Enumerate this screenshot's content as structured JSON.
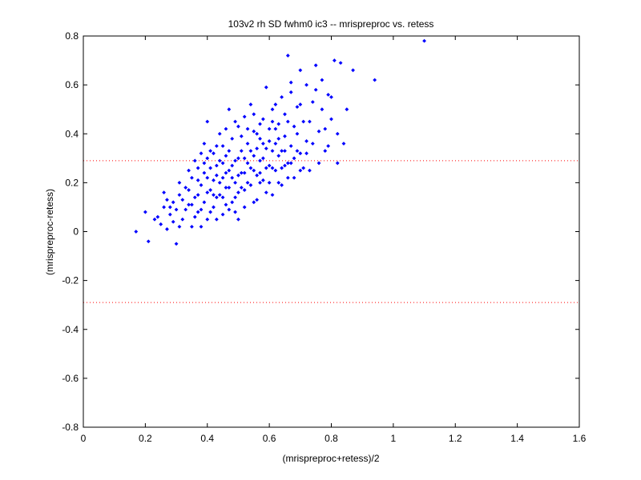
{
  "chart_data": {
    "type": "scatter",
    "title": "103v2 rh SD fwhm0 ic3 -- mrispreproc vs. retess",
    "xlabel": "(mrispreproc+retess)/2",
    "ylabel": "(mrispreproc-retess)",
    "xlim": [
      0,
      1.6
    ],
    "ylim": [
      -0.8,
      0.8
    ],
    "xticks": [
      0,
      0.2,
      0.4,
      0.6,
      0.8,
      1,
      1.2,
      1.4,
      1.6
    ],
    "xtick_labels": [
      "0",
      "0.2",
      "0.4",
      "0.6",
      "0.8",
      "1",
      "1.2",
      "1.4",
      "1.6"
    ],
    "yticks": [
      -0.8,
      -0.6,
      -0.4,
      -0.2,
      0,
      0.2,
      0.4,
      0.6,
      0.8
    ],
    "ytick_labels": [
      "-0.8",
      "-0.6",
      "-0.4",
      "-0.2",
      "0",
      "0.2",
      "0.4",
      "0.6",
      "0.8"
    ],
    "grid": false,
    "series": [
      {
        "marker": "diamond",
        "color": "#0000ff",
        "points": [
          [
            0.17,
            0.0
          ],
          [
            0.21,
            -0.04
          ],
          [
            0.2,
            0.08
          ],
          [
            0.23,
            0.05
          ],
          [
            0.25,
            0.03
          ],
          [
            0.26,
            0.1
          ],
          [
            0.27,
            0.01
          ],
          [
            0.28,
            0.07
          ],
          [
            0.29,
            0.12
          ],
          [
            0.3,
            -0.05
          ],
          [
            0.3,
            0.09
          ],
          [
            0.31,
            0.15
          ],
          [
            0.32,
            0.05
          ],
          [
            0.33,
            0.18
          ],
          [
            0.34,
            0.11
          ],
          [
            0.35,
            0.02
          ],
          [
            0.35,
            0.22
          ],
          [
            0.36,
            0.14
          ],
          [
            0.37,
            0.26
          ],
          [
            0.37,
            0.08
          ],
          [
            0.38,
            0.19
          ],
          [
            0.38,
            0.32
          ],
          [
            0.39,
            0.12
          ],
          [
            0.39,
            0.24
          ],
          [
            0.4,
            0.05
          ],
          [
            0.4,
            0.45
          ],
          [
            0.4,
            0.3
          ],
          [
            0.41,
            0.17
          ],
          [
            0.42,
            0.21
          ],
          [
            0.42,
            0.1
          ],
          [
            0.43,
            0.35
          ],
          [
            0.43,
            0.27
          ],
          [
            0.44,
            0.15
          ],
          [
            0.44,
            0.4
          ],
          [
            0.45,
            0.22
          ],
          [
            0.45,
            0.07
          ],
          [
            0.46,
            0.31
          ],
          [
            0.46,
            0.18
          ],
          [
            0.47,
            0.25
          ],
          [
            0.47,
            0.5
          ],
          [
            0.48,
            0.12
          ],
          [
            0.48,
            0.38
          ],
          [
            0.49,
            0.2
          ],
          [
            0.49,
            0.29
          ],
          [
            0.5,
            0.43
          ],
          [
            0.5,
            0.16
          ],
          [
            0.51,
            0.33
          ],
          [
            0.51,
            0.24
          ],
          [
            0.52,
            0.1
          ],
          [
            0.52,
            0.47
          ],
          [
            0.53,
            0.28
          ],
          [
            0.53,
            0.36
          ],
          [
            0.54,
            0.19
          ],
          [
            0.54,
            0.52
          ],
          [
            0.55,
            0.31
          ],
          [
            0.55,
            0.41
          ],
          [
            0.56,
            0.23
          ],
          [
            0.56,
            0.13
          ],
          [
            0.57,
            0.38
          ],
          [
            0.57,
            0.29
          ],
          [
            0.58,
            0.46
          ],
          [
            0.58,
            0.21
          ],
          [
            0.59,
            0.59
          ],
          [
            0.59,
            0.34
          ],
          [
            0.6,
            0.27
          ],
          [
            0.6,
            0.42
          ],
          [
            0.61,
            0.15
          ],
          [
            0.61,
            0.5
          ],
          [
            0.62,
            0.36
          ],
          [
            0.62,
            0.25
          ],
          [
            0.63,
            0.44
          ],
          [
            0.63,
            0.31
          ],
          [
            0.64,
            0.55
          ],
          [
            0.64,
            0.19
          ],
          [
            0.65,
            0.39
          ],
          [
            0.65,
            0.48
          ],
          [
            0.66,
            0.72
          ],
          [
            0.66,
            0.28
          ],
          [
            0.67,
            0.35
          ],
          [
            0.67,
            0.57
          ],
          [
            0.68,
            0.43
          ],
          [
            0.68,
            0.22
          ],
          [
            0.69,
            0.51
          ],
          [
            0.7,
            0.66
          ],
          [
            0.7,
            0.32
          ],
          [
            0.71,
            0.45
          ],
          [
            0.72,
            0.6
          ],
          [
            0.72,
            0.37
          ],
          [
            0.73,
            0.25
          ],
          [
            0.74,
            0.53
          ],
          [
            0.75,
            0.68
          ],
          [
            0.76,
            0.41
          ],
          [
            0.77,
            0.62
          ],
          [
            0.78,
            0.33
          ],
          [
            0.79,
            0.56
          ],
          [
            0.8,
            0.46
          ],
          [
            0.81,
            0.7
          ],
          [
            0.82,
            0.28
          ],
          [
            0.83,
            0.69
          ],
          [
            0.84,
            0.36
          ],
          [
            0.87,
            0.66
          ],
          [
            0.94,
            0.62
          ],
          [
            1.1,
            0.78
          ],
          [
            0.24,
            0.06
          ],
          [
            0.27,
            0.13
          ],
          [
            0.29,
            0.04
          ],
          [
            0.31,
            0.2
          ],
          [
            0.33,
            0.09
          ],
          [
            0.34,
            0.25
          ],
          [
            0.36,
            0.06
          ],
          [
            0.36,
            0.29
          ],
          [
            0.38,
            0.02
          ],
          [
            0.39,
            0.36
          ],
          [
            0.41,
            0.26
          ],
          [
            0.41,
            0.08
          ],
          [
            0.42,
            0.32
          ],
          [
            0.43,
            0.14
          ],
          [
            0.44,
            0.29
          ],
          [
            0.45,
            0.35
          ],
          [
            0.46,
            0.11
          ],
          [
            0.46,
            0.42
          ],
          [
            0.47,
            0.18
          ],
          [
            0.48,
            0.27
          ],
          [
            0.49,
            0.08
          ],
          [
            0.49,
            0.45
          ],
          [
            0.5,
            0.23
          ],
          [
            0.51,
            0.39
          ],
          [
            0.52,
            0.3
          ],
          [
            0.52,
            0.17
          ],
          [
            0.53,
            0.42
          ],
          [
            0.54,
            0.26
          ],
          [
            0.55,
            0.12
          ],
          [
            0.55,
            0.48
          ],
          [
            0.56,
            0.34
          ],
          [
            0.57,
            0.2
          ],
          [
            0.57,
            0.44
          ],
          [
            0.58,
            0.3
          ],
          [
            0.59,
            0.16
          ],
          [
            0.6,
            0.37
          ],
          [
            0.61,
            0.45
          ],
          [
            0.61,
            0.26
          ],
          [
            0.62,
            0.52
          ],
          [
            0.63,
            0.2
          ],
          [
            0.64,
            0.33
          ],
          [
            0.65,
            0.27
          ],
          [
            0.66,
            0.45
          ],
          [
            0.67,
            0.61
          ],
          [
            0.68,
            0.3
          ],
          [
            0.69,
            0.4
          ],
          [
            0.7,
            0.52
          ],
          [
            0.71,
            0.26
          ],
          [
            0.73,
            0.45
          ],
          [
            0.74,
            0.36
          ],
          [
            0.75,
            0.58
          ],
          [
            0.77,
            0.5
          ],
          [
            0.78,
            0.42
          ],
          [
            0.8,
            0.55
          ],
          [
            0.82,
            0.4
          ],
          [
            0.85,
            0.5
          ],
          [
            0.26,
            0.16
          ],
          [
            0.28,
            0.1
          ],
          [
            0.31,
            0.02
          ],
          [
            0.32,
            0.13
          ],
          [
            0.34,
            0.17
          ],
          [
            0.35,
            0.11
          ],
          [
            0.37,
            0.21
          ],
          [
            0.37,
            0.15
          ],
          [
            0.38,
            0.09
          ],
          [
            0.39,
            0.28
          ],
          [
            0.4,
            0.16
          ],
          [
            0.4,
            0.22
          ],
          [
            0.41,
            0.33
          ],
          [
            0.42,
            0.15
          ],
          [
            0.43,
            0.23
          ],
          [
            0.43,
            0.05
          ],
          [
            0.44,
            0.2
          ],
          [
            0.45,
            0.28
          ],
          [
            0.45,
            0.14
          ],
          [
            0.46,
            0.24
          ],
          [
            0.47,
            0.33
          ],
          [
            0.47,
            0.09
          ],
          [
            0.48,
            0.22
          ],
          [
            0.49,
            0.14
          ],
          [
            0.5,
            0.3
          ],
          [
            0.5,
            0.05
          ],
          [
            0.51,
            0.18
          ],
          [
            0.52,
            0.24
          ],
          [
            0.53,
            0.2
          ],
          [
            0.54,
            0.33
          ],
          [
            0.55,
            0.25
          ],
          [
            0.56,
            0.4
          ],
          [
            0.57,
            0.24
          ],
          [
            0.58,
            0.36
          ],
          [
            0.59,
            0.26
          ],
          [
            0.6,
            0.2
          ],
          [
            0.61,
            0.33
          ],
          [
            0.62,
            0.42
          ],
          [
            0.63,
            0.38
          ],
          [
            0.64,
            0.26
          ],
          [
            0.65,
            0.33
          ],
          [
            0.66,
            0.22
          ],
          [
            0.67,
            0.28
          ],
          [
            0.69,
            0.33
          ],
          [
            0.7,
            0.25
          ],
          [
            0.72,
            0.32
          ],
          [
            0.76,
            0.28
          ],
          [
            0.79,
            0.35
          ]
        ]
      }
    ],
    "reference_lines": [
      {
        "y": 0.29,
        "color": "#ff0000",
        "style": "dotted"
      },
      {
        "y": -0.29,
        "color": "#ff0000",
        "style": "dotted"
      }
    ]
  }
}
